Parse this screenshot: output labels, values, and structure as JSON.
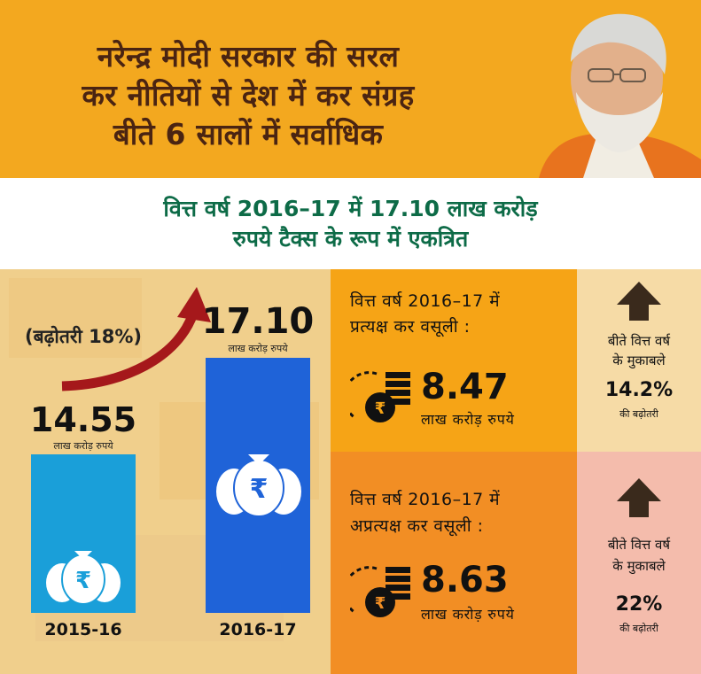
{
  "header": {
    "headline_lines": [
      "नरेन्द्र मोदी सरकार की सरल",
      "कर नीतियों से देश में कर संग्रह",
      "बीते 6 सालों में सर्वाधिक"
    ]
  },
  "subheading": {
    "line1": "वित्त वर्ष 2016–17 में  17.10 लाख करोड़",
    "line2": "रुपये टैक्स के रूप में एकत्रित"
  },
  "chart_data": {
    "type": "bar",
    "categories": [
      "2015-16",
      "2016-17"
    ],
    "values": [
      14.55,
      17.1
    ],
    "unit": "लाख करोड़ रुपये",
    "annotation": "(बढ़ोतरी 18%)",
    "colors": [
      "#1a9fd9",
      "#1f63d8"
    ]
  },
  "chart": {
    "value_labels": [
      "14.55",
      "17.10"
    ],
    "unit_labels": [
      "लाख करोड़ रुपये",
      "लाख करोड़ रुपये"
    ],
    "year_labels": [
      "2015-16",
      "2016-17"
    ],
    "growth_label": "(बढ़ोतरी 18%)",
    "currency_symbol": "₹"
  },
  "direct_tax": {
    "heading_line1": "वित्त वर्ष 2016–17 में",
    "heading_line2": "प्रत्यक्ष कर वसूली :",
    "amount": "8.47",
    "unit": "लाख करोड़ रुपये",
    "side_line1": "बीते वित्त वर्ष",
    "side_line2": "के मुकाबले",
    "side_pct": "14.2%",
    "side_small": "की बढ़ोतरी"
  },
  "indirect_tax": {
    "heading_line1": "वित्त वर्ष 2016–17 में",
    "heading_line2": "अप्रत्यक्ष कर वसूली :",
    "amount": "8.63",
    "unit": "लाख करोड़ रुपये",
    "side_line1": "बीते वित्त वर्ष",
    "side_line2": "के मुकाबले",
    "side_pct": "22%",
    "side_small": "की बढ़ोतरी"
  },
  "colors": {
    "header_bg": "#f3a81f",
    "headline_text": "#4a2412",
    "subheading_text": "#0d6b47",
    "bar_2015": "#1a9fd9",
    "bar_2016": "#1f63d8",
    "direct_bg": "#f6a416",
    "indirect_bg": "#f28e24"
  }
}
